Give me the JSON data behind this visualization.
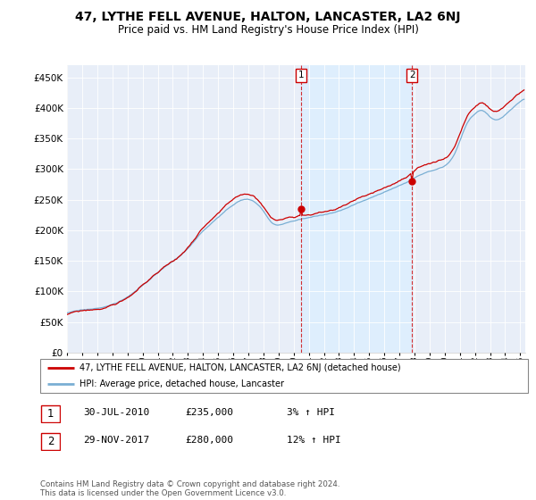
{
  "title": "47, LYTHE FELL AVENUE, HALTON, LANCASTER, LA2 6NJ",
  "subtitle": "Price paid vs. HM Land Registry's House Price Index (HPI)",
  "hpi_label": "HPI: Average price, detached house, Lancaster",
  "price_label": "47, LYTHE FELL AVENUE, HALTON, LANCASTER, LA2 6NJ (detached house)",
  "annotation1": {
    "label": "1",
    "date": "30-JUL-2010",
    "price": 235000,
    "pct": "3% ↑ HPI"
  },
  "annotation2": {
    "label": "2",
    "date": "29-NOV-2017",
    "price": 280000,
    "pct": "12% ↑ HPI"
  },
  "footer": "Contains HM Land Registry data © Crown copyright and database right 2024.\nThis data is licensed under the Open Government Licence v3.0.",
  "price_color": "#cc0000",
  "hpi_color": "#7aafd4",
  "shade_color": "#ddeeff",
  "ylim": [
    0,
    470000
  ],
  "yticks": [
    0,
    50000,
    100000,
    150000,
    200000,
    250000,
    300000,
    350000,
    400000,
    450000
  ],
  "background_color": "#ffffff",
  "plot_bg_color": "#e8eef8"
}
